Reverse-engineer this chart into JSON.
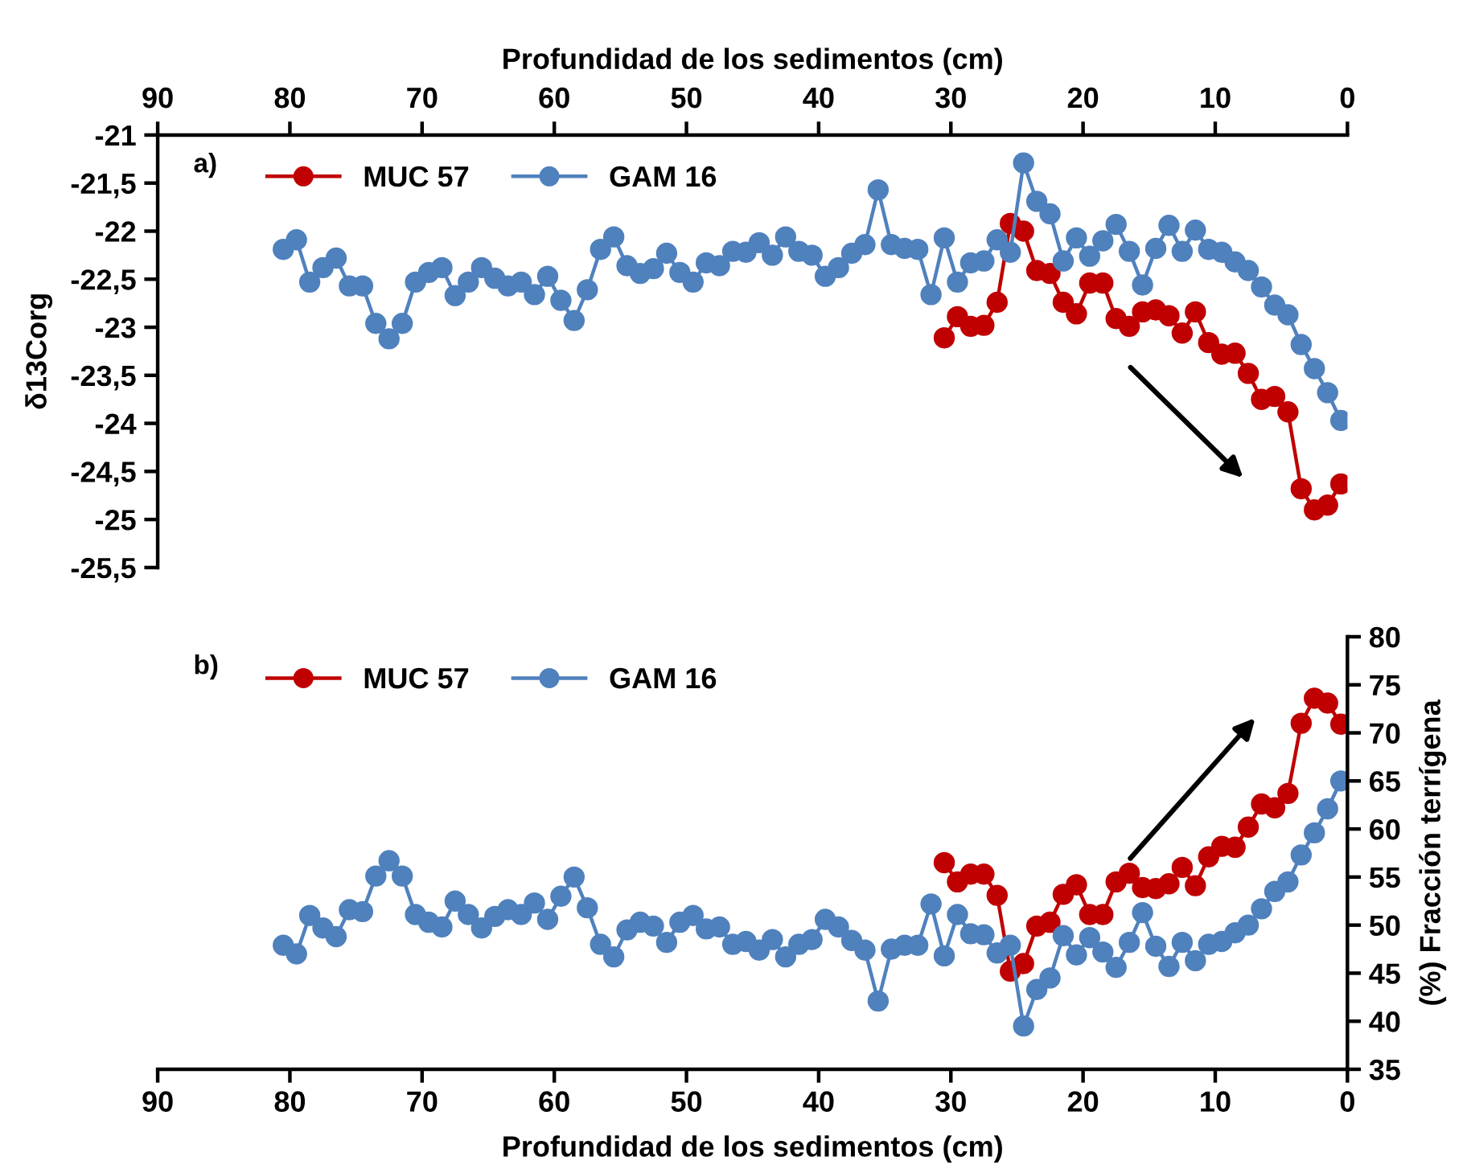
{
  "chart_data": [
    {
      "type": "line",
      "xlabel": "Profundidad de los sedimentos (cm)",
      "ylabel": "δ13Corg",
      "annotations": [
        "a)"
      ],
      "legend": "top left",
      "marker": "circle",
      "line_style": "solid",
      "xlim": [
        90,
        0
      ],
      "xticks": [
        90,
        80,
        70,
        60,
        50,
        40,
        30,
        20,
        10,
        0
      ],
      "ylim": [
        -25.5,
        -21
      ],
      "yticks": [
        {
          "value": -21,
          "label": "-21"
        },
        {
          "value": -21.5,
          "label": "-21,5"
        },
        {
          "value": -22,
          "label": "-22"
        },
        {
          "value": -22.5,
          "label": "-22,5"
        },
        {
          "value": -23,
          "label": "-23"
        },
        {
          "value": -23.5,
          "label": "-23,5"
        },
        {
          "value": -24,
          "label": "-24"
        },
        {
          "value": -24.5,
          "label": "-24,5"
        },
        {
          "value": -25,
          "label": "-25"
        },
        {
          "value": -25.5,
          "label": "-25,5"
        }
      ],
      "series": [
        {
          "name": "MUC 57",
          "color": "#c00000",
          "x": [
            30.5,
            29.5,
            28.5,
            27.5,
            26.5,
            25.5,
            24.5,
            23.5,
            22.5,
            21.5,
            20.5,
            19.5,
            18.5,
            17.5,
            16.5,
            15.5,
            14.5,
            13.5,
            12.5,
            11.5,
            10.5,
            9.5,
            8.5,
            7.5,
            6.5,
            5.5,
            4.5,
            3.5,
            2.5,
            1.5,
            0.5
          ],
          "values": [
            -23.11,
            -22.89,
            -22.99,
            -22.98,
            -22.74,
            -21.92,
            -22.0,
            -22.41,
            -22.44,
            -22.74,
            -22.86,
            -22.54,
            -22.54,
            -22.91,
            -22.99,
            -22.84,
            -22.82,
            -22.88,
            -23.06,
            -22.84,
            -23.16,
            -23.28,
            -23.27,
            -23.48,
            -23.75,
            -23.72,
            -23.88,
            -24.68,
            -24.9,
            -24.85,
            -24.63
          ]
        },
        {
          "name": "GAM 16",
          "color": "#4f81bd",
          "x": [
            80.5,
            79.5,
            78.5,
            77.5,
            76.5,
            75.5,
            74.5,
            73.5,
            72.5,
            71.5,
            70.5,
            69.5,
            68.5,
            67.5,
            66.5,
            65.5,
            64.5,
            63.5,
            62.5,
            61.5,
            60.5,
            59.5,
            58.5,
            57.5,
            56.5,
            55.5,
            54.5,
            53.5,
            52.5,
            51.5,
            50.5,
            49.5,
            48.5,
            47.5,
            46.5,
            45.5,
            44.5,
            43.5,
            42.5,
            41.5,
            40.5,
            39.5,
            38.5,
            37.5,
            36.5,
            35.5,
            34.5,
            33.5,
            32.5,
            31.5,
            30.5,
            29.5,
            28.5,
            27.5,
            26.5,
            25.5,
            24.5,
            23.5,
            22.5,
            21.5,
            20.5,
            19.5,
            18.5,
            17.5,
            16.5,
            15.5,
            14.5,
            13.5,
            12.5,
            11.5,
            10.5,
            9.5,
            8.5,
            7.5,
            6.5,
            5.5,
            4.5,
            3.5,
            2.5,
            1.5,
            0.5
          ],
          "values": [
            -22.19,
            -22.09,
            -22.53,
            -22.38,
            -22.28,
            -22.57,
            -22.57,
            -22.96,
            -23.12,
            -22.96,
            -22.53,
            -22.43,
            -22.38,
            -22.67,
            -22.53,
            -22.38,
            -22.49,
            -22.57,
            -22.53,
            -22.66,
            -22.47,
            -22.72,
            -22.93,
            -22.61,
            -22.19,
            -22.06,
            -22.36,
            -22.44,
            -22.39,
            -22.23,
            -22.43,
            -22.53,
            -22.33,
            -22.36,
            -22.21,
            -22.22,
            -22.12,
            -22.25,
            -22.06,
            -22.21,
            -22.25,
            -22.47,
            -22.38,
            -22.23,
            -22.14,
            -21.57,
            -22.14,
            -22.18,
            -22.19,
            -22.66,
            -22.07,
            -22.53,
            -22.33,
            -22.31,
            -22.09,
            -22.22,
            -21.29,
            -21.69,
            -21.82,
            -22.31,
            -22.07,
            -22.26,
            -22.1,
            -21.93,
            -22.21,
            -22.56,
            -22.18,
            -21.94,
            -22.21,
            -21.99,
            -22.19,
            -22.22,
            -22.32,
            -22.41,
            -22.58,
            -22.77,
            -22.87,
            -23.18,
            -23.43,
            -23.68,
            -23.97
          ]
        }
      ]
    },
    {
      "type": "line",
      "xlabel": "Profundidad de los sedimentos (cm)",
      "y2label": "(%) Fracción terrígena",
      "annotations": [
        "b)"
      ],
      "legend": "top left",
      "marker": "circle",
      "line_style": "solid",
      "xlim": [
        90,
        0
      ],
      "xticks": [
        90,
        80,
        70,
        60,
        50,
        40,
        30,
        20,
        10,
        0
      ],
      "y2lim": [
        35,
        80
      ],
      "y2ticks": [
        35,
        40,
        45,
        50,
        55,
        60,
        65,
        70,
        75,
        80
      ],
      "series": [
        {
          "name": "MUC 57",
          "color": "#c00000",
          "axis": "y2",
          "x": [
            30.5,
            29.5,
            28.5,
            27.5,
            26.5,
            25.5,
            24.5,
            23.5,
            22.5,
            21.5,
            20.5,
            19.5,
            18.5,
            17.5,
            16.5,
            15.5,
            14.5,
            13.5,
            12.5,
            11.5,
            10.5,
            9.5,
            8.5,
            7.5,
            6.5,
            5.5,
            4.5,
            3.5,
            2.5,
            1.5,
            0.5
          ],
          "values": [
            56.5,
            54.5,
            55.3,
            55.3,
            53.1,
            45.2,
            46.0,
            49.9,
            50.3,
            53.2,
            54.2,
            51.1,
            51.1,
            54.5,
            55.4,
            53.9,
            53.8,
            54.3,
            56.0,
            54.1,
            57.1,
            58.2,
            58.1,
            60.2,
            62.6,
            62.2,
            63.7,
            71.0,
            73.6,
            73.1,
            70.9
          ]
        },
        {
          "name": "GAM 16",
          "color": "#4f81bd",
          "axis": "y2",
          "x": [
            80.5,
            79.5,
            78.5,
            77.5,
            76.5,
            75.5,
            74.5,
            73.5,
            72.5,
            71.5,
            70.5,
            69.5,
            68.5,
            67.5,
            66.5,
            65.5,
            64.5,
            63.5,
            62.5,
            61.5,
            60.5,
            59.5,
            58.5,
            57.5,
            56.5,
            55.5,
            54.5,
            53.5,
            52.5,
            51.5,
            50.5,
            49.5,
            48.5,
            47.5,
            46.5,
            45.5,
            44.5,
            43.5,
            42.5,
            41.5,
            40.5,
            39.5,
            38.5,
            37.5,
            36.5,
            35.5,
            34.5,
            33.5,
            32.5,
            31.5,
            30.5,
            29.5,
            28.5,
            27.5,
            26.5,
            25.5,
            24.5,
            23.5,
            22.5,
            21.5,
            20.5,
            19.5,
            18.5,
            17.5,
            16.5,
            15.5,
            14.5,
            13.5,
            12.5,
            11.5,
            10.5,
            9.5,
            8.5,
            7.5,
            6.5,
            5.5,
            4.5,
            3.5,
            2.5,
            1.5,
            0.5
          ],
          "values": [
            47.9,
            47.0,
            51.0,
            49.7,
            48.8,
            51.6,
            51.4,
            55.1,
            56.7,
            55.1,
            51.1,
            50.3,
            49.8,
            52.5,
            51.1,
            49.7,
            50.9,
            51.6,
            51.1,
            52.3,
            50.6,
            53.0,
            55.0,
            51.8,
            48.0,
            46.7,
            49.5,
            50.3,
            49.9,
            48.2,
            50.3,
            51.0,
            49.6,
            49.8,
            48.0,
            48.3,
            47.4,
            48.5,
            46.7,
            48.0,
            48.5,
            50.6,
            49.8,
            48.4,
            47.4,
            42.1,
            47.5,
            47.9,
            47.9,
            52.2,
            46.8,
            51.1,
            49.1,
            49.0,
            47.1,
            47.9,
            39.5,
            43.3,
            44.5,
            48.9,
            46.9,
            48.7,
            47.2,
            45.6,
            48.2,
            51.3,
            47.8,
            45.7,
            48.2,
            46.3,
            48.0,
            48.3,
            49.2,
            50.0,
            51.7,
            53.5,
            54.5,
            57.3,
            59.6,
            62.1,
            65.0
          ]
        }
      ]
    }
  ]
}
